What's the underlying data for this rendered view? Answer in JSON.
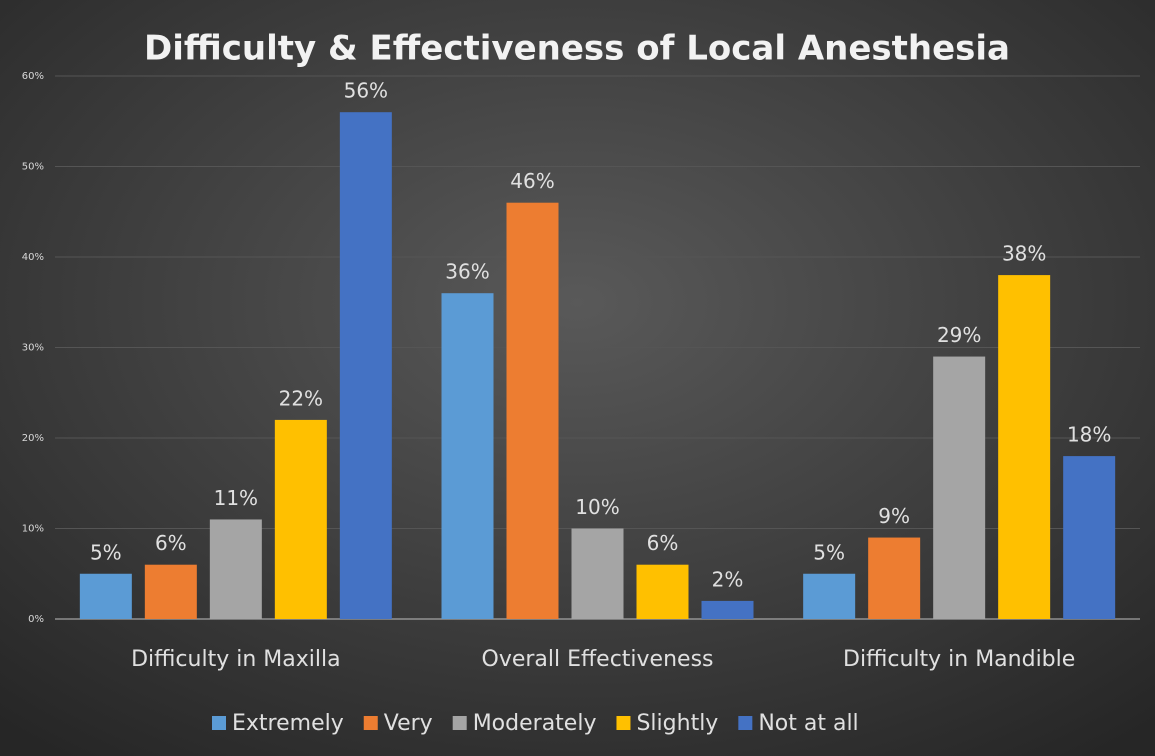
{
  "chart_data": {
    "type": "bar",
    "title": "Difficulty & Effectiveness of Local Anesthesia",
    "categories": [
      "Difficulty in Maxilla",
      "Overall Effectiveness",
      "Difficulty in Mandible"
    ],
    "series": [
      {
        "name": "Extremely",
        "color": "#5b9bd5",
        "values": [
          5,
          36,
          5
        ],
        "value_labels": [
          "5%",
          "36%",
          "5%"
        ]
      },
      {
        "name": "Very",
        "color": "#ed7d31",
        "values": [
          6,
          46,
          9
        ],
        "value_labels": [
          "6%",
          "46%",
          "9%"
        ]
      },
      {
        "name": "Moderately",
        "color": "#a5a5a5",
        "values": [
          11,
          10,
          29
        ],
        "value_labels": [
          "11%",
          "10%",
          "29%"
        ]
      },
      {
        "name": "Slightly",
        "color": "#ffc000",
        "values": [
          22,
          6,
          38
        ],
        "value_labels": [
          "22%",
          "6%",
          "38%"
        ]
      },
      {
        "name": "Not at all",
        "color": "#4472c4",
        "values": [
          56,
          2,
          18
        ],
        "value_labels": [
          "56%",
          "2%",
          "18%"
        ]
      }
    ],
    "ylim": [
      0,
      60
    ],
    "yticks": [
      {
        "value": 0,
        "label": "0%"
      },
      {
        "value": 10,
        "label": "10%"
      },
      {
        "value": 20,
        "label": "20%"
      },
      {
        "value": 30,
        "label": "30%"
      },
      {
        "value": 40,
        "label": "40%"
      },
      {
        "value": 50,
        "label": "50%"
      },
      {
        "value": 60,
        "label": "60%"
      }
    ],
    "grid": true,
    "legend": "bottom"
  }
}
